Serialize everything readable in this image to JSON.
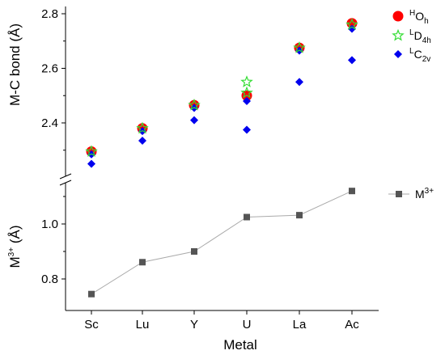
{
  "chart_data": {
    "type": "scatter",
    "categories": [
      "Sc",
      "Lu",
      "Y",
      "U",
      "La",
      "Ac"
    ],
    "xlabel": "Metal",
    "top_panel": {
      "ylabel": "M-C bond (Å)",
      "ylim": [
        2.22,
        2.8
      ],
      "yticks": [
        "2.4",
        "2.6",
        "2.8"
      ],
      "ytick_values": [
        2.4,
        2.6,
        2.8
      ],
      "series": [
        {
          "name": "Oh",
          "prefix": "H",
          "sub": "h",
          "base": "O",
          "marker": "circle",
          "color": "#ff0000",
          "values": [
            2.295,
            2.38,
            2.465,
            2.5,
            2.675,
            2.765
          ]
        },
        {
          "name": "D4h",
          "prefix": "L",
          "sub": "4h",
          "base": "D",
          "marker": "star",
          "color": "#33dd33",
          "values": [
            2.295,
            2.38,
            2.465,
            2.55,
            2.675,
            2.76
          ],
          "extra_points": [
            {
              "category": "U",
              "value": 2.51
            }
          ]
        },
        {
          "name": "C2v",
          "prefix": "L",
          "sub": "2v",
          "base": "C",
          "marker": "diamond",
          "color": "#0000ee",
          "values": [
            2.285,
            2.37,
            2.455,
            2.48,
            2.665,
            2.745
          ],
          "extra_points": [
            {
              "category": "Sc",
              "value": 2.25
            },
            {
              "category": "Lu",
              "value": 2.335
            },
            {
              "category": "Y",
              "value": 2.41
            },
            {
              "category": "U",
              "value": 2.375
            },
            {
              "category": "La",
              "value": 2.55
            },
            {
              "category": "Ac",
              "value": 2.63
            }
          ]
        }
      ]
    },
    "bottom_panel": {
      "ylabel_base": "M",
      "ylabel_sup": "3+",
      "ylabel_unit": " (Å)",
      "ylim": [
        0.72,
        1.15
      ],
      "yticks": [
        "0.8",
        "1.0"
      ],
      "ytick_values": [
        0.8,
        1.0
      ],
      "series": [
        {
          "name": "M3+",
          "base": "M",
          "sup": "3+",
          "marker": "square",
          "color": "#555555",
          "line_color": "#aaaaaa",
          "values": [
            0.745,
            0.861,
            0.9,
            1.025,
            1.032,
            1.12
          ]
        }
      ]
    }
  }
}
